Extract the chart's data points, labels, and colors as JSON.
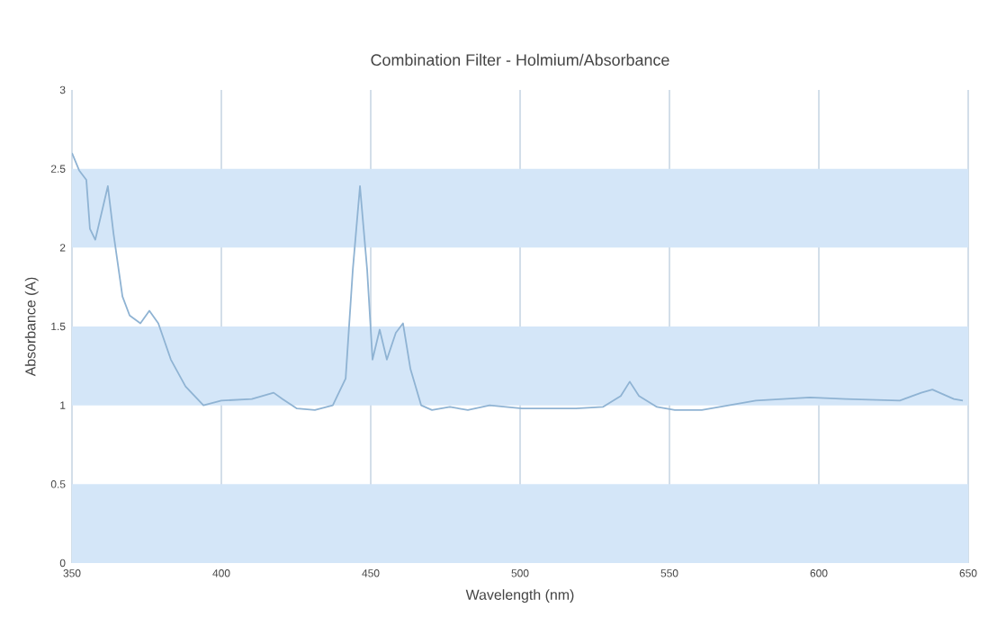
{
  "chart_data": {
    "type": "line",
    "title": "Combination Filter - Holmium/Absorbance",
    "xlabel": "Wavelength (nm)",
    "ylabel": "Absorbance (A)",
    "x": [
      350,
      352.4,
      354.8,
      356,
      357.8,
      362,
      363.9,
      366.9,
      369.3,
      372.9,
      375.9,
      378.9,
      383.1,
      388,
      394,
      400,
      410.2,
      417.5,
      420.5,
      425.3,
      431.3,
      437.3,
      441.6,
      444,
      446.4,
      448.8,
      450.6,
      453,
      455.4,
      458.4,
      460.8,
      463.3,
      466.9,
      470.5,
      476.5,
      482.5,
      489.8,
      500.6,
      518.7,
      527.7,
      533.7,
      536.7,
      539.8,
      545.8,
      551.8,
      560.8,
      578.9,
      597,
      609,
      627.1,
      634.3,
      638,
      645.2,
      648.2
    ],
    "series": [
      {
        "color": "#8fb3d3",
        "values": [
          2.6,
          2.49,
          2.43,
          2.12,
          2.05,
          2.39,
          2.09,
          1.69,
          1.57,
          1.52,
          1.6,
          1.52,
          1.29,
          1.12,
          1.0,
          1.03,
          1.04,
          1.08,
          1.04,
          0.98,
          0.97,
          1.0,
          1.17,
          1.86,
          2.39,
          1.86,
          1.29,
          1.48,
          1.29,
          1.46,
          1.52,
          1.23,
          1.0,
          0.97,
          0.99,
          0.97,
          1.0,
          0.98,
          0.98,
          0.99,
          1.06,
          1.15,
          1.06,
          0.99,
          0.97,
          0.97,
          1.03,
          1.05,
          1.04,
          1.03,
          1.08,
          1.1,
          1.04,
          1.03
        ]
      }
    ],
    "xlim": [
      350,
      650
    ],
    "xticks": [
      350,
      400,
      450,
      500,
      550,
      600,
      650
    ],
    "ylim": [
      0,
      3
    ],
    "yticks": [
      0,
      0.5,
      1,
      1.5,
      2,
      2.5,
      3
    ],
    "grid": "x",
    "bands": [
      {
        "axis": "y",
        "from": 0,
        "to": 0.5,
        "color": "#d4e6f8"
      },
      {
        "axis": "y",
        "from": 1,
        "to": 1.5,
        "color": "#d4e6f8"
      },
      {
        "axis": "y",
        "from": 2,
        "to": 2.5,
        "color": "#d4e6f8"
      }
    ]
  }
}
